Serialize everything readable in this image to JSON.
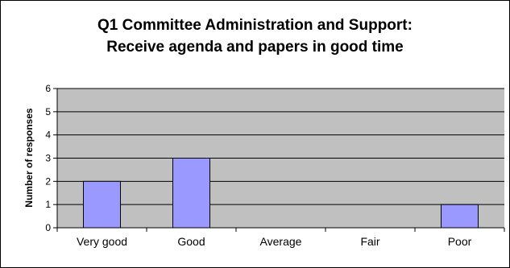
{
  "chart_data": {
    "type": "bar",
    "title_line1": "Q1 Committee Administration and Support:",
    "title_line2": "Receive agenda and papers in good time",
    "xlabel": "",
    "ylabel": "Number of responses",
    "categories": [
      "Very good",
      "Good",
      "Average",
      "Fair",
      "Poor"
    ],
    "values": [
      2,
      3,
      0,
      0,
      1
    ],
    "ylim": [
      0,
      6
    ],
    "yticks": [
      0,
      1,
      2,
      3,
      4,
      5,
      6
    ],
    "grid": true,
    "legend": "none",
    "colors": {
      "plot_background": "#c0c0c0",
      "bar_fill": "#9999ff",
      "bar_stroke": "#000000",
      "gridline": "#000000"
    }
  }
}
